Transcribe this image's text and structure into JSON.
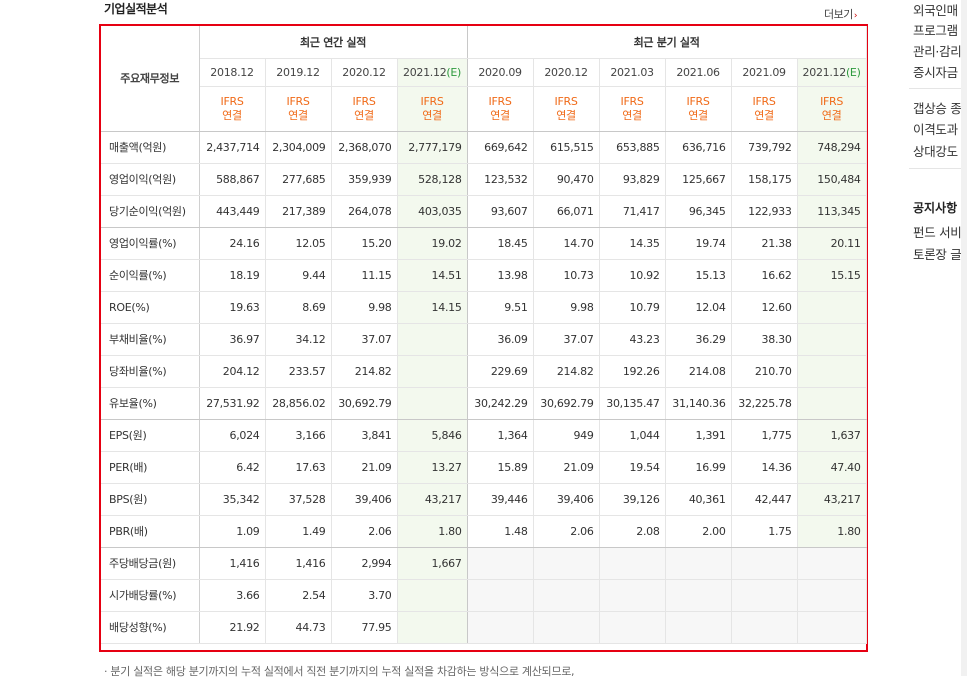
{
  "section_title": "기업실적분석",
  "more_link": "더보기",
  "table": {
    "corner_label": "주요재무정보",
    "annual_header": "최근 연간 실적",
    "quarter_header": "최근 분기 실적",
    "annual_periods": [
      "2018.12",
      "2019.12",
      "2020.12",
      "2021.12"
    ],
    "quarter_periods": [
      "2020.09",
      "2020.12",
      "2021.03",
      "2021.06",
      "2021.09",
      "2021.12"
    ],
    "estimate_mark": "(E)",
    "ifrs_top": "IFRS",
    "ifrs_bottom": "연결",
    "rows": [
      {
        "label": "매출액(억원)",
        "annual": [
          "2,437,714",
          "2,304,009",
          "2,368,070",
          "2,777,179"
        ],
        "quarter": [
          "669,642",
          "615,515",
          "653,885",
          "636,716",
          "739,792",
          "748,294"
        ]
      },
      {
        "label": "영업이익(억원)",
        "annual": [
          "588,867",
          "277,685",
          "359,939",
          "528,128"
        ],
        "quarter": [
          "123,532",
          "90,470",
          "93,829",
          "125,667",
          "158,175",
          "150,484"
        ]
      },
      {
        "label": "당기순이익(억원)",
        "annual": [
          "443,449",
          "217,389",
          "264,078",
          "403,035"
        ],
        "quarter": [
          "93,607",
          "66,071",
          "71,417",
          "96,345",
          "122,933",
          "113,345"
        ]
      },
      {
        "label": "영업이익률(%)",
        "annual": [
          "24.16",
          "12.05",
          "15.20",
          "19.02"
        ],
        "quarter": [
          "18.45",
          "14.70",
          "14.35",
          "19.74",
          "21.38",
          "20.11"
        ]
      },
      {
        "label": "순이익률(%)",
        "annual": [
          "18.19",
          "9.44",
          "11.15",
          "14.51"
        ],
        "quarter": [
          "13.98",
          "10.73",
          "10.92",
          "15.13",
          "16.62",
          "15.15"
        ]
      },
      {
        "label": "ROE(%)",
        "annual": [
          "19.63",
          "8.69",
          "9.98",
          "14.15"
        ],
        "quarter": [
          "9.51",
          "9.98",
          "10.79",
          "12.04",
          "12.60",
          ""
        ]
      },
      {
        "label": "부채비율(%)",
        "annual": [
          "36.97",
          "34.12",
          "37.07",
          ""
        ],
        "quarter": [
          "36.09",
          "37.07",
          "43.23",
          "36.29",
          "38.30",
          ""
        ]
      },
      {
        "label": "당좌비율(%)",
        "annual": [
          "204.12",
          "233.57",
          "214.82",
          ""
        ],
        "quarter": [
          "229.69",
          "214.82",
          "192.26",
          "214.08",
          "210.70",
          ""
        ]
      },
      {
        "label": "유보율(%)",
        "annual": [
          "27,531.92",
          "28,856.02",
          "30,692.79",
          ""
        ],
        "quarter": [
          "30,242.29",
          "30,692.79",
          "30,135.47",
          "31,140.36",
          "32,225.78",
          ""
        ]
      },
      {
        "label": "EPS(원)",
        "annual": [
          "6,024",
          "3,166",
          "3,841",
          "5,846"
        ],
        "quarter": [
          "1,364",
          "949",
          "1,044",
          "1,391",
          "1,775",
          "1,637"
        ]
      },
      {
        "label": "PER(배)",
        "annual": [
          "6.42",
          "17.63",
          "21.09",
          "13.27"
        ],
        "quarter": [
          "15.89",
          "21.09",
          "19.54",
          "16.99",
          "14.36",
          "47.40"
        ]
      },
      {
        "label": "BPS(원)",
        "annual": [
          "35,342",
          "37,528",
          "39,406",
          "43,217"
        ],
        "quarter": [
          "39,446",
          "39,406",
          "39,126",
          "40,361",
          "42,447",
          "43,217"
        ]
      },
      {
        "label": "PBR(배)",
        "annual": [
          "1.09",
          "1.49",
          "2.06",
          "1.80"
        ],
        "quarter": [
          "1.48",
          "2.06",
          "2.08",
          "2.00",
          "1.75",
          "1.80"
        ]
      },
      {
        "label": "주당배당금(원)",
        "annual": [
          "1,416",
          "1,416",
          "2,994",
          "1,667"
        ],
        "quarter": [
          "",
          "",
          "",
          "",
          "",
          ""
        ]
      },
      {
        "label": "시가배당률(%)",
        "annual": [
          "3.66",
          "2.54",
          "3.70",
          ""
        ],
        "quarter": [
          "",
          "",
          "",
          "",
          "",
          ""
        ]
      },
      {
        "label": "배당성향(%)",
        "annual": [
          "21.92",
          "44.73",
          "77.95",
          ""
        ],
        "quarter": [
          "",
          "",
          "",
          "",
          "",
          ""
        ]
      }
    ]
  },
  "footnote": "· 분기 실적은 해당 분기까지의 누적 실적에서 직전 분기까지의 누적 실적을 차감하는 방식으로 계산되므로,",
  "right_panel": {
    "news_lines_a": [
      "외국인매",
      "프로그램",
      "관리·감리",
      "증시자금"
    ],
    "news_lines_b": [
      "갭상승 종",
      "이격도과",
      "상대강도"
    ],
    "notice_title": "공지사항",
    "notice_lines": [
      "펀드 서비",
      "토론장 글"
    ]
  },
  "colors": {
    "highlight_border": "#e60012",
    "ifrs_text": "#f06a18",
    "estimate_text": "#2e9a3e",
    "estimate_bg": "#f3f9ee"
  }
}
